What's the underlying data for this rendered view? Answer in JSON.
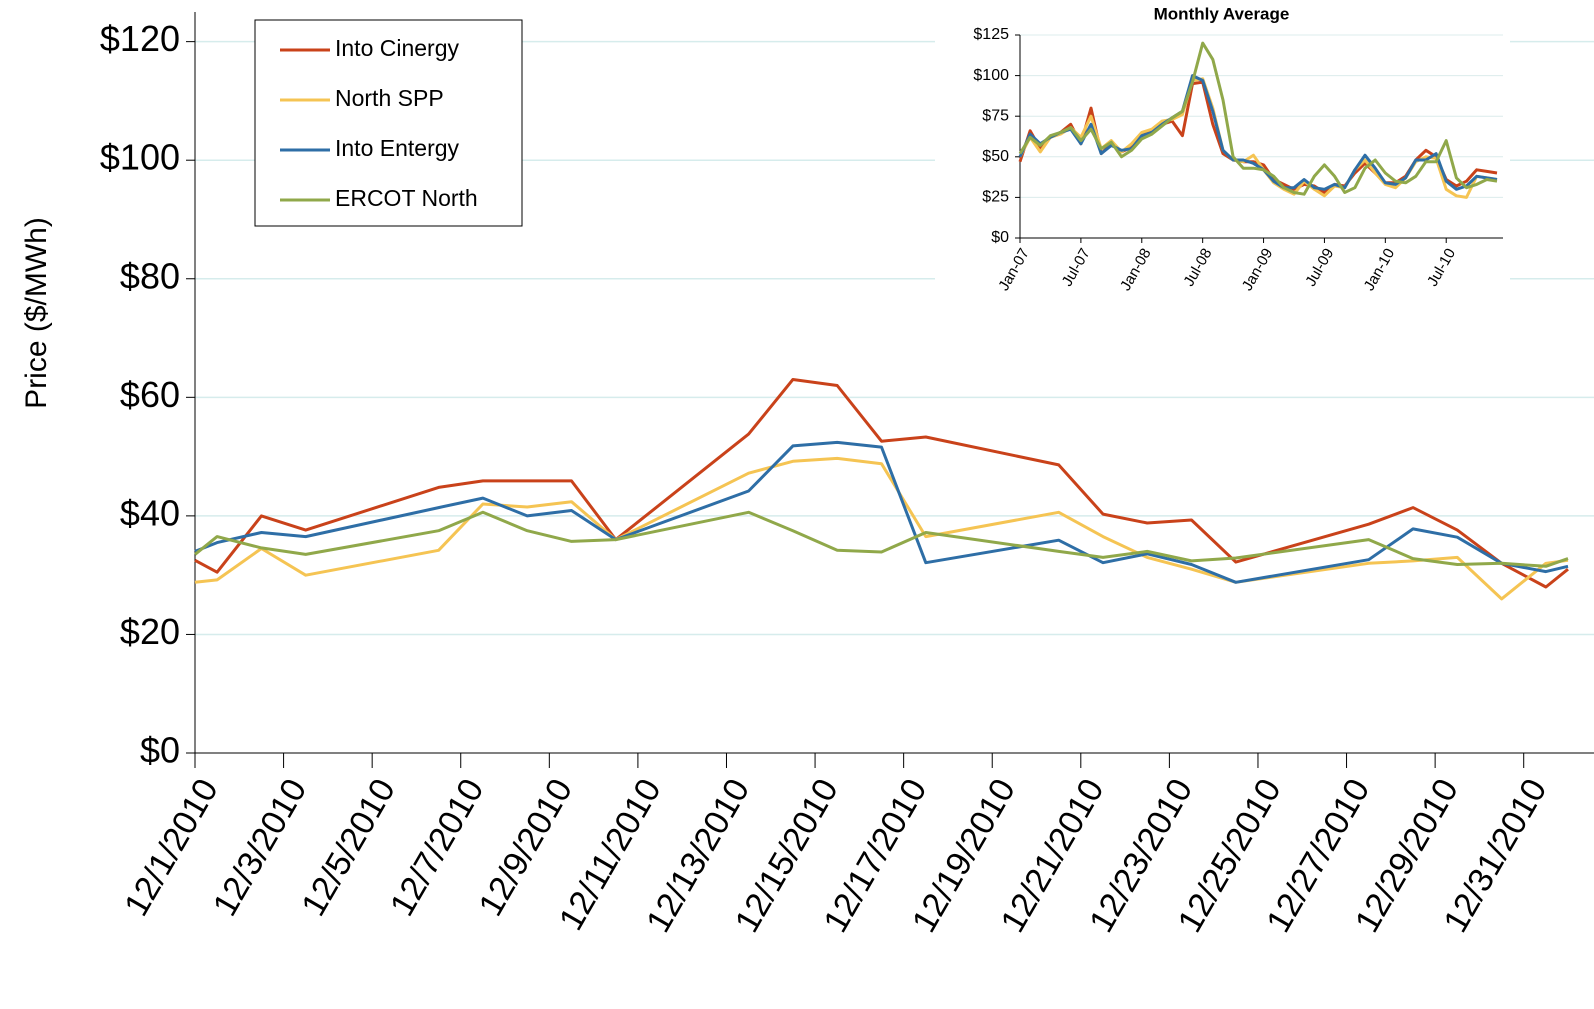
{
  "chart_data": [
    {
      "type": "line",
      "y_label": "Price ($/MWh)",
      "grid": true,
      "legend": "upper-left",
      "x": [
        1,
        1.5,
        2.5,
        3.5,
        6.5,
        7.5,
        8.5,
        9.5,
        10.5,
        13.5,
        14.5,
        15.5,
        16.5,
        17.5,
        20.5,
        21.5,
        22.5,
        23.5,
        24.5,
        27.5,
        28.5,
        29.5,
        30.5,
        31.5,
        32
      ],
      "xlim": [
        1,
        32
      ],
      "xticks": [
        {
          "value": 1,
          "label": "12/1/2010"
        },
        {
          "value": 3,
          "label": "12/3/2010"
        },
        {
          "value": 5,
          "label": "12/5/2010"
        },
        {
          "value": 7,
          "label": "12/7/2010"
        },
        {
          "value": 9,
          "label": "12/9/2010"
        },
        {
          "value": 11,
          "label": "12/11/2010"
        },
        {
          "value": 13,
          "label": "12/13/2010"
        },
        {
          "value": 15,
          "label": "12/15/2010"
        },
        {
          "value": 17,
          "label": "12/17/2010"
        },
        {
          "value": 19,
          "label": "12/19/2010"
        },
        {
          "value": 21,
          "label": "12/21/2010"
        },
        {
          "value": 23,
          "label": "12/23/2010"
        },
        {
          "value": 25,
          "label": "12/25/2010"
        },
        {
          "value": 27,
          "label": "12/27/2010"
        },
        {
          "value": 29,
          "label": "12/29/2010"
        },
        {
          "value": 31,
          "label": "12/31/2010"
        }
      ],
      "ylim": [
        0,
        125
      ],
      "yticks": [
        {
          "value": 0,
          "label": "$0"
        },
        {
          "value": 20,
          "label": "$20"
        },
        {
          "value": 40,
          "label": "$40"
        },
        {
          "value": 60,
          "label": "$60"
        },
        {
          "value": 80,
          "label": "$80"
        },
        {
          "value": 100,
          "label": "$100"
        },
        {
          "value": 120,
          "label": "$120"
        }
      ],
      "series": [
        {
          "name": "Into Cinergy",
          "color": "#c9421a",
          "values": [
            32.5,
            30.5,
            40,
            37.6,
            44.8,
            45.9,
            45.9,
            45.9,
            36,
            53.8,
            63,
            62,
            52.6,
            53.3,
            48.6,
            40.3,
            38.8,
            39.3,
            32.2,
            38.6,
            41.4,
            37.6,
            32,
            28,
            31
          ]
        },
        {
          "name": "North SPP",
          "color": "#f5c453",
          "values": [
            28.8,
            29.2,
            34.5,
            30,
            34.2,
            42,
            41.5,
            42.4,
            36,
            47.2,
            49.2,
            49.7,
            48.8,
            36.5,
            40.6,
            36.5,
            33,
            31,
            28.8,
            32,
            32.4,
            33,
            26,
            32,
            32.5
          ]
        },
        {
          "name": "Into Entergy",
          "color": "#2e6ea6",
          "values": [
            34,
            35.5,
            37.2,
            36.5,
            41.4,
            43,
            40,
            40.9,
            36,
            44.2,
            51.8,
            52.4,
            51.6,
            32.1,
            35.9,
            32.1,
            33.6,
            31.8,
            28.8,
            32.6,
            37.8,
            36.4,
            32,
            30.6,
            31.5
          ]
        },
        {
          "name": "ERCOT North",
          "color": "#90a84a",
          "values": [
            33.5,
            36.5,
            34.6,
            33.5,
            37.5,
            40.6,
            37.5,
            35.7,
            36,
            40.6,
            37.5,
            34.2,
            33.9,
            37.2,
            34,
            33,
            34,
            32.4,
            32.9,
            36,
            32.8,
            31.8,
            32,
            31.5,
            32.8
          ]
        }
      ]
    },
    {
      "type": "line",
      "title": "Monthly Average",
      "grid": true,
      "categories": [
        "Jan-07",
        null,
        null,
        null,
        null,
        null,
        "Jul-07",
        null,
        null,
        null,
        null,
        null,
        "Jan-08",
        null,
        null,
        null,
        null,
        null,
        "Jul-08",
        null,
        null,
        null,
        null,
        null,
        "Jan-09",
        null,
        null,
        null,
        null,
        null,
        "Jul-09",
        null,
        null,
        null,
        null,
        null,
        "Jan-10",
        null,
        null,
        null,
        null,
        null,
        "Jul-10",
        null,
        null,
        null,
        null,
        null
      ],
      "ylim": [
        0,
        125
      ],
      "yticks": [
        {
          "value": 0,
          "label": "$0"
        },
        {
          "value": 25,
          "label": "$25"
        },
        {
          "value": 50,
          "label": "$50"
        },
        {
          "value": 75,
          "label": "$75"
        },
        {
          "value": 100,
          "label": "$100"
        },
        {
          "value": 125,
          "label": "$125"
        }
      ],
      "series": [
        {
          "color": "#c9421a",
          "values": [
            47,
            66,
            55,
            62,
            65,
            70,
            58,
            80,
            52,
            58,
            53,
            56,
            63,
            66,
            70,
            72,
            63,
            95,
            96,
            70,
            52,
            48,
            47,
            47,
            45,
            36,
            33,
            30,
            33,
            32,
            28,
            33,
            32,
            40,
            46,
            40,
            34,
            34,
            38,
            48,
            54,
            50,
            36,
            32,
            35,
            42,
            41,
            40
          ]
        },
        {
          "color": "#f5c453",
          "values": [
            50,
            62,
            53,
            62,
            64,
            68,
            62,
            75,
            55,
            60,
            53,
            58,
            65,
            67,
            72,
            73,
            76,
            97,
            98,
            80,
            54,
            48,
            47,
            51,
            42,
            34,
            30,
            27,
            35,
            30,
            26,
            32,
            31,
            42,
            48,
            40,
            33,
            31,
            37,
            47,
            50,
            49,
            30,
            26,
            25,
            38,
            37,
            36
          ]
        },
        {
          "color": "#2e6ea6",
          "values": [
            50,
            64,
            58,
            62,
            65,
            67,
            58,
            70,
            52,
            57,
            54,
            55,
            63,
            65,
            70,
            74,
            78,
            100,
            97,
            78,
            54,
            48,
            48,
            46,
            42,
            35,
            31,
            31,
            36,
            31,
            30,
            33,
            31,
            42,
            51,
            43,
            34,
            33,
            37,
            48,
            48,
            52,
            35,
            30,
            32,
            38,
            37,
            36
          ]
        },
        {
          "color": "#90a84a",
          "values": [
            52,
            62,
            57,
            63,
            65,
            68,
            60,
            67,
            55,
            59,
            50,
            54,
            61,
            64,
            69,
            74,
            78,
            96,
            120,
            110,
            85,
            50,
            43,
            43,
            42,
            38,
            31,
            28,
            27,
            38,
            45,
            38,
            28,
            31,
            43,
            48,
            40,
            35,
            34,
            38,
            47,
            47,
            60,
            37,
            31,
            33,
            36,
            35
          ]
        }
      ]
    }
  ]
}
